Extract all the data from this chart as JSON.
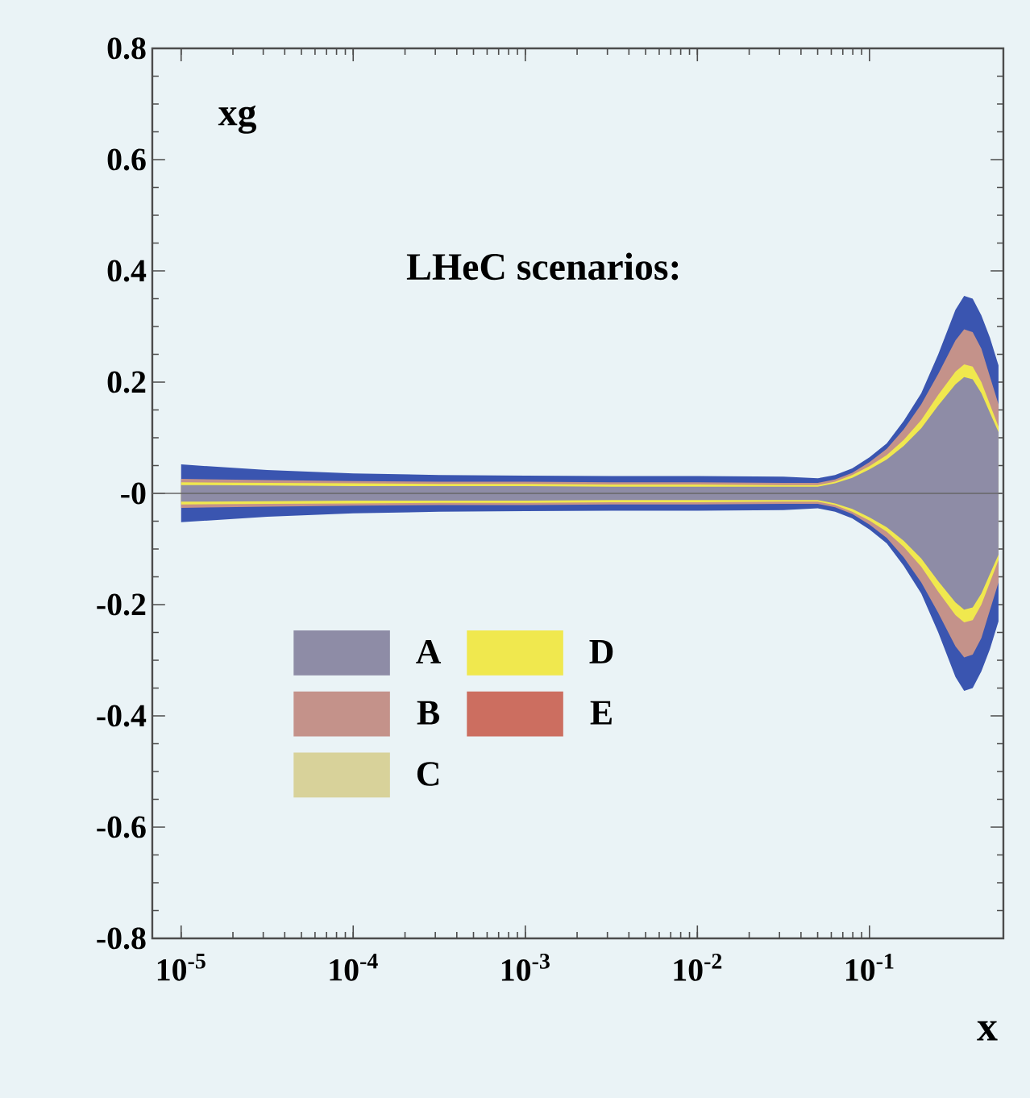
{
  "chart_data": {
    "type": "line",
    "ylabel": "xg",
    "xlabel": "x",
    "annotations": [
      "LHeC scenarios:"
    ],
    "log": "x",
    "xlim": [
      6.8e-06,
      0.6
    ],
    "ylim": [
      -0.8,
      0.8
    ],
    "xticks": [
      {
        "value": 1e-05,
        "label": "10$^{-5}$"
      },
      {
        "value": 0.0001,
        "label": "10$^{-4}$"
      },
      {
        "value": 0.001,
        "label": "10$^{-3}$"
      },
      {
        "value": 0.01,
        "label": "10$^{-2}$"
      },
      {
        "value": 0.1,
        "label": "10$^{-1}$"
      }
    ],
    "yticks": [
      -0.8,
      -0.6,
      -0.4,
      -0.2,
      {
        "value": 0,
        "label": "-0"
      },
      0.2,
      0.4,
      0.6,
      0.8
    ],
    "legend": "bottom left",
    "ref_lines": [
      {
        "axis": "y",
        "value": 0,
        "color": "#666666"
      }
    ],
    "x": [
      1e-05,
      3.16e-05,
      0.0001,
      0.000316,
      0.001,
      0.00316,
      0.01,
      0.0316,
      0.0501,
      0.0631,
      0.0794,
      0.1,
      0.126,
      0.158,
      0.2,
      0.251,
      0.316,
      0.355,
      0.398,
      0.447,
      0.501,
      0.562
    ],
    "series": [
      {
        "name": "A",
        "color": "#8e8ca6",
        "values": [
          null,
          null,
          null,
          null,
          null,
          null,
          null,
          null,
          null,
          null,
          null,
          null,
          null,
          null,
          null,
          null,
          null,
          null,
          null,
          null,
          null,
          null
        ],
        "upper": [
          0.015,
          0.014,
          0.013,
          0.013,
          0.013,
          0.012,
          0.012,
          0.012,
          0.012,
          0.018,
          0.028,
          0.043,
          0.061,
          0.085,
          0.117,
          0.158,
          0.196,
          0.209,
          0.205,
          0.18,
          0.145,
          0.11
        ],
        "lower": [
          -0.015,
          -0.014,
          -0.013,
          -0.013,
          -0.013,
          -0.012,
          -0.012,
          -0.012,
          -0.012,
          -0.018,
          -0.028,
          -0.043,
          -0.061,
          -0.085,
          -0.117,
          -0.158,
          -0.196,
          -0.209,
          -0.205,
          -0.18,
          -0.145,
          -0.11
        ]
      },
      {
        "name": "B",
        "color": "#c4928a",
        "values": [
          null,
          null,
          null,
          null,
          null,
          null,
          null,
          null,
          null,
          null,
          null,
          null,
          null,
          null,
          null,
          null,
          null,
          null,
          null,
          null,
          null,
          null
        ],
        "upper": [
          0.026,
          0.024,
          0.022,
          0.021,
          0.021,
          0.02,
          0.02,
          0.019,
          0.019,
          0.025,
          0.037,
          0.056,
          0.08,
          0.115,
          0.16,
          0.215,
          0.275,
          0.295,
          0.29,
          0.26,
          0.21,
          0.16
        ],
        "lower": [
          -0.026,
          -0.024,
          -0.022,
          -0.021,
          -0.021,
          -0.02,
          -0.02,
          -0.019,
          -0.019,
          -0.025,
          -0.037,
          -0.056,
          -0.08,
          -0.115,
          -0.16,
          -0.215,
          -0.275,
          -0.295,
          -0.29,
          -0.26,
          -0.21,
          -0.16
        ]
      },
      {
        "name": "C",
        "color": "#d8d29a",
        "values": [
          null,
          null,
          null,
          null,
          null,
          null,
          null,
          null,
          null,
          null,
          null,
          null,
          null,
          null,
          null,
          null,
          null,
          null,
          null,
          null,
          null,
          null
        ],
        "upper": [
          null,
          null,
          null,
          null,
          null,
          null,
          null,
          null,
          null,
          null,
          null,
          null,
          null,
          null,
          null,
          null,
          null,
          null,
          null,
          null,
          null,
          null
        ],
        "lower": [
          null,
          null,
          null,
          null,
          null,
          null,
          null,
          null,
          null,
          null,
          null,
          null,
          null,
          null,
          null,
          null,
          null,
          null,
          null,
          null,
          null,
          null
        ]
      },
      {
        "name": "D",
        "color": "#f0e84e",
        "values": [
          null,
          null,
          null,
          null,
          null,
          null,
          null,
          null,
          null,
          null,
          null,
          null,
          null,
          null,
          null,
          null,
          null,
          null,
          null,
          null,
          null,
          null
        ],
        "upper": [
          0.02,
          0.019,
          0.018,
          0.017,
          0.017,
          0.016,
          0.016,
          0.015,
          0.015,
          0.021,
          0.033,
          0.049,
          0.069,
          0.096,
          0.132,
          0.177,
          0.219,
          0.232,
          0.228,
          0.2,
          0.16,
          0.12
        ],
        "lower": [
          -0.02,
          -0.019,
          -0.018,
          -0.017,
          -0.017,
          -0.016,
          -0.016,
          -0.015,
          -0.015,
          -0.021,
          -0.033,
          -0.049,
          -0.069,
          -0.096,
          -0.132,
          -0.177,
          -0.219,
          -0.232,
          -0.228,
          -0.2,
          -0.16,
          -0.12
        ]
      },
      {
        "name": "E",
        "color": "#cc6e60",
        "values": [
          null,
          null,
          null,
          null,
          null,
          null,
          null,
          null,
          null,
          null,
          null,
          null,
          null,
          null,
          null,
          null,
          null,
          null,
          null,
          null,
          null,
          null
        ],
        "upper": [
          null,
          null,
          null,
          null,
          null,
          null,
          null,
          null,
          null,
          null,
          null,
          null,
          null,
          null,
          null,
          null,
          null,
          null,
          null,
          null,
          null,
          null
        ],
        "lower": [
          null,
          null,
          null,
          null,
          null,
          null,
          null,
          null,
          null,
          null,
          null,
          null,
          null,
          null,
          null,
          null,
          null,
          null,
          null,
          null,
          null,
          null
        ]
      },
      {
        "color": "#3a55b0",
        "values": [
          null,
          null,
          null,
          null,
          null,
          null,
          null,
          null,
          null,
          null,
          null,
          null,
          null,
          null,
          null,
          null,
          null,
          null,
          null,
          null,
          null,
          null
        ],
        "upper": [
          0.052,
          0.042,
          0.036,
          0.033,
          0.032,
          0.031,
          0.031,
          0.03,
          0.027,
          0.033,
          0.045,
          0.065,
          0.09,
          0.13,
          0.18,
          0.25,
          0.33,
          0.355,
          0.35,
          0.32,
          0.28,
          0.23
        ],
        "lower": [
          -0.052,
          -0.042,
          -0.036,
          -0.033,
          -0.032,
          -0.031,
          -0.031,
          -0.03,
          -0.027,
          -0.033,
          -0.045,
          -0.065,
          -0.09,
          -0.13,
          -0.18,
          -0.25,
          -0.33,
          -0.355,
          -0.35,
          -0.32,
          -0.28,
          -0.23
        ]
      }
    ]
  }
}
